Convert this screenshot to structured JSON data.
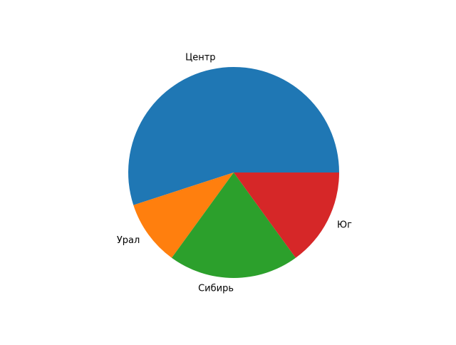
{
  "chart_data": {
    "type": "pie",
    "categories": [
      "Центр",
      "Урал",
      "Сибирь",
      "Юг"
    ],
    "values": [
      55,
      10,
      20,
      15
    ],
    "colors": [
      "#1f77b4",
      "#ff7f0e",
      "#2ca02c",
      "#d62728"
    ],
    "start_angle": 0,
    "direction": "counterclockwise"
  }
}
